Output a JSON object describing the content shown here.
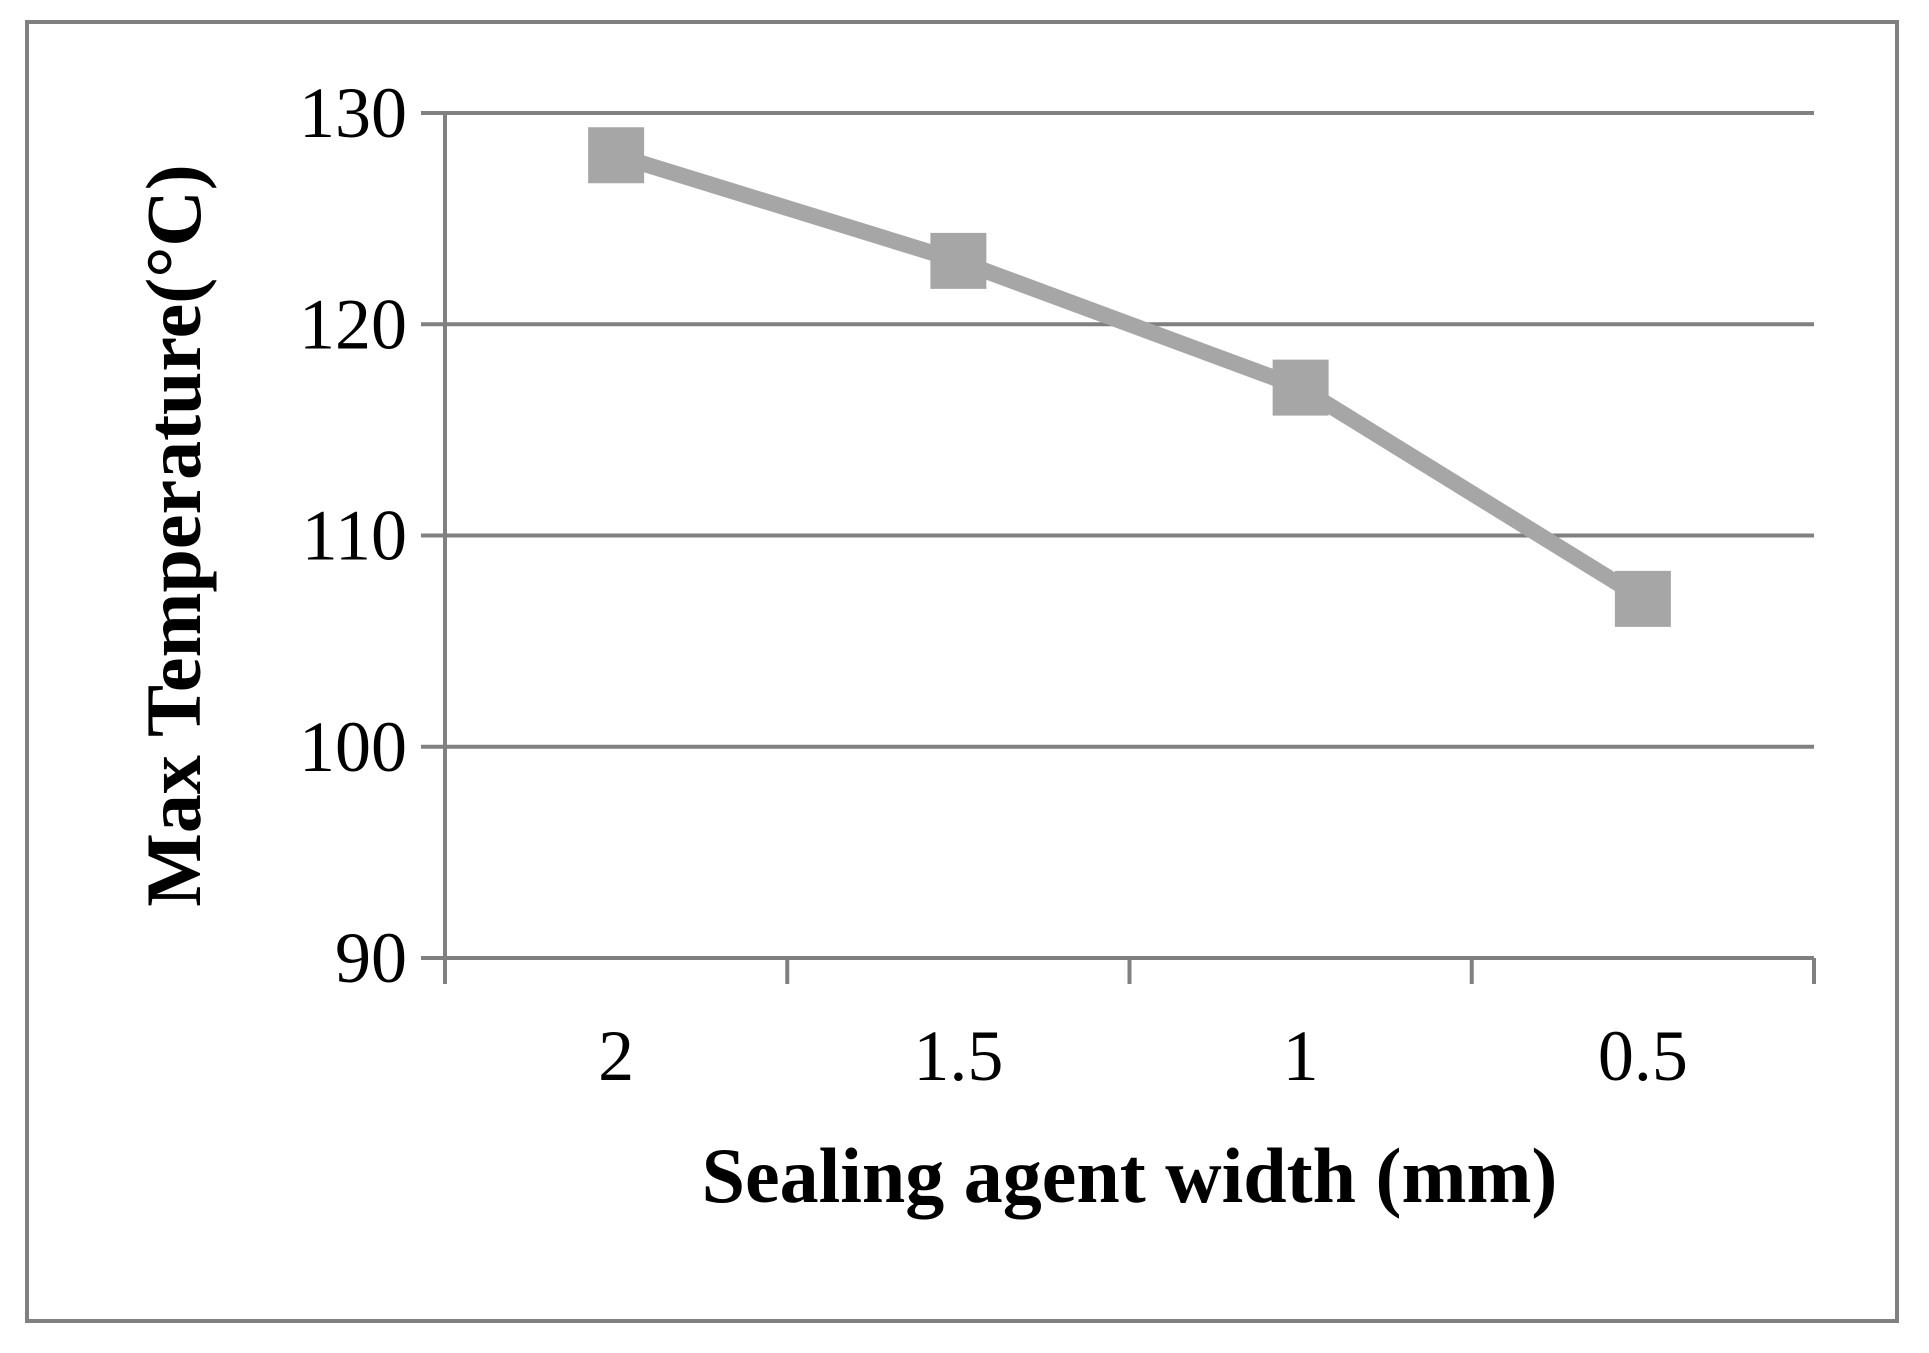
{
  "chart_data": {
    "type": "line",
    "title": "",
    "xlabel": "Sealing agent width (mm)",
    "ylabel": "Max Temperature(°C)",
    "categories": [
      "2",
      "1.5",
      "1",
      "0.5"
    ],
    "series": [
      {
        "values": [
          128,
          123,
          117,
          107
        ]
      }
    ],
    "ylim": [
      90,
      130
    ],
    "yticks": [
      "90",
      "100",
      "110",
      "120",
      "130"
    ],
    "grid": true,
    "legend": "none",
    "marker": "square",
    "series_color": "#a6a6a6",
    "grid_color": "#808080"
  }
}
